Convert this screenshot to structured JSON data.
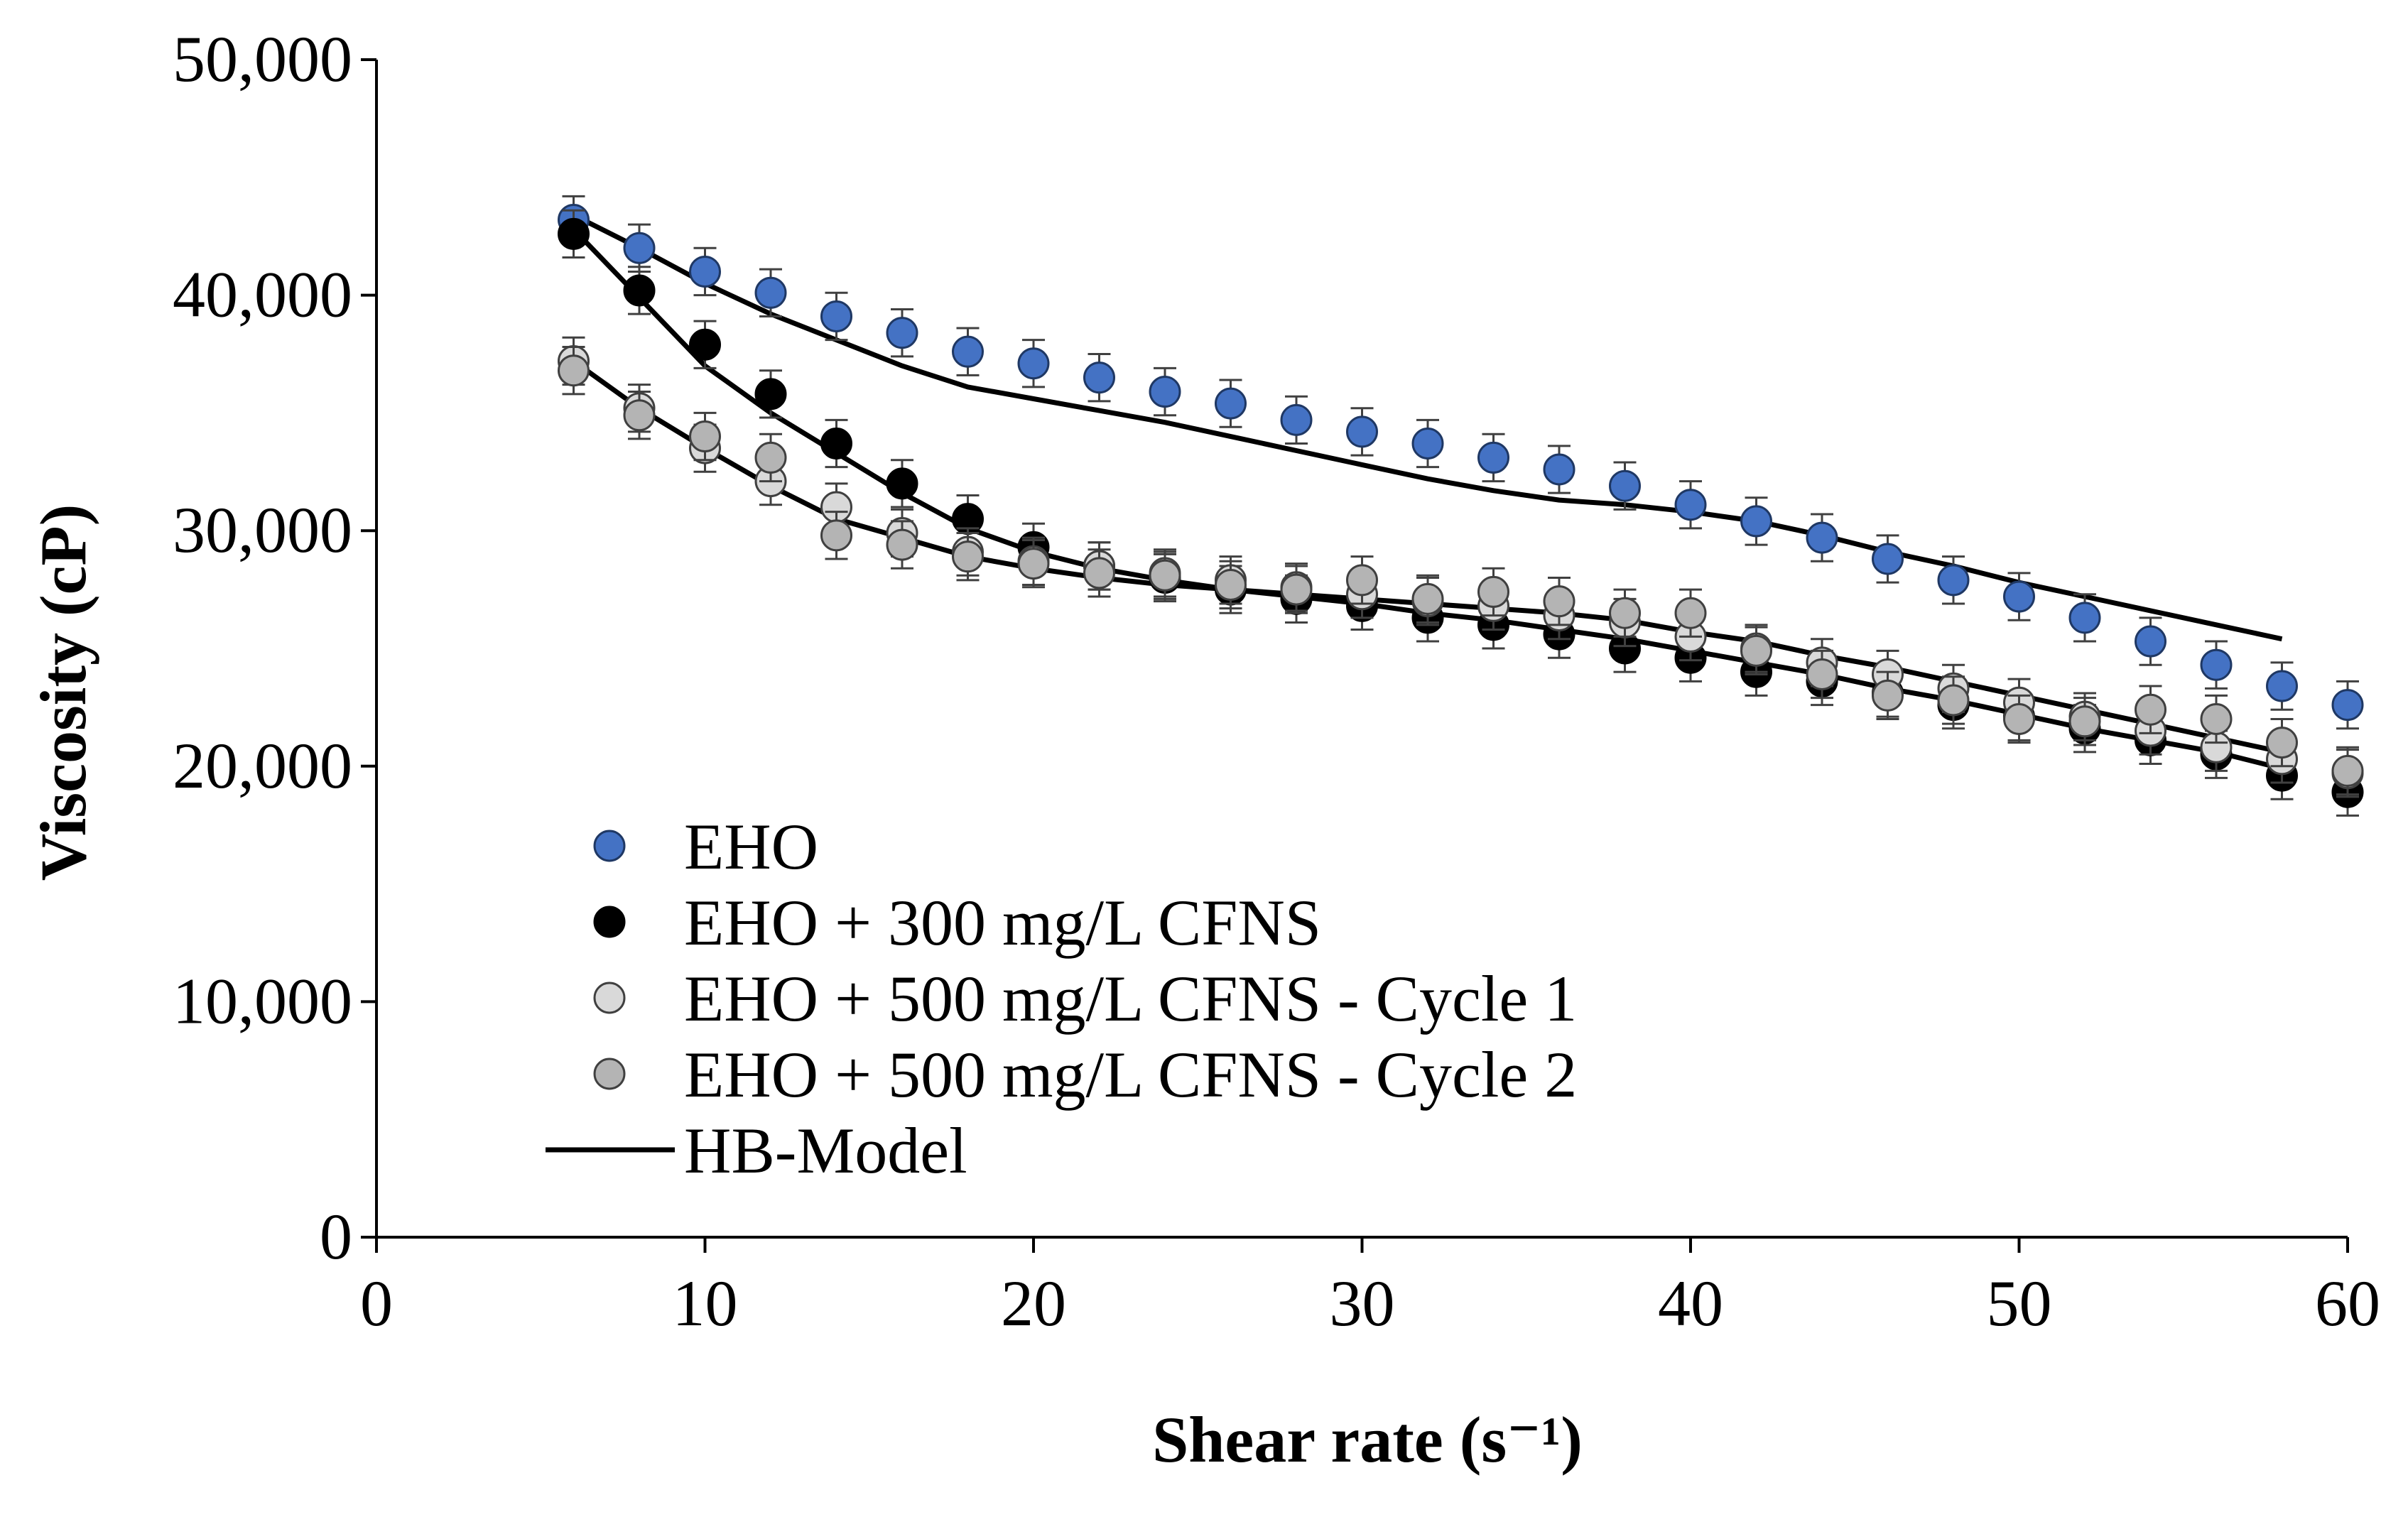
{
  "chart_data": {
    "type": "scatter",
    "title": "",
    "xlabel": "Shear rate (s⁻¹)",
    "ylabel": "Viscosity (cP)",
    "xlim": [
      0,
      60
    ],
    "ylim": [
      0,
      50000
    ],
    "x_ticks": [
      0,
      10,
      20,
      30,
      40,
      50,
      60
    ],
    "x_tick_labels": [
      "0",
      "10",
      "20",
      "30",
      "40",
      "50",
      "60"
    ],
    "y_ticks": [
      0,
      10000,
      20000,
      30000,
      40000,
      50000
    ],
    "y_tick_labels": [
      "0",
      "10,000",
      "20,000",
      "30,000",
      "40,000",
      "50,000"
    ],
    "grid": false,
    "legend_position": "bottom-left",
    "error_bar": 1000,
    "x": [
      6,
      8,
      10,
      12,
      14,
      16,
      18,
      20,
      22,
      24,
      26,
      28,
      30,
      32,
      34,
      36,
      38,
      40,
      42,
      44,
      46,
      48,
      50,
      52,
      54,
      56,
      58,
      60
    ],
    "series": [
      {
        "name": "EHO",
        "marker": "circle",
        "fill": "#4472C4",
        "stroke": "#1f3864",
        "values": [
          43200,
          42000,
          41000,
          40100,
          39100,
          38400,
          37600,
          37100,
          36500,
          35900,
          35400,
          34700,
          34200,
          33700,
          33100,
          32600,
          31900,
          31100,
          30400,
          29700,
          28800,
          27900,
          27200,
          26300,
          25300,
          24300,
          23400,
          22600
        ]
      },
      {
        "name": "EHO + 300 mg/L CFNS",
        "marker": "circle",
        "fill": "#000000",
        "stroke": "#000000",
        "values": [
          42600,
          40200,
          37900,
          35800,
          33700,
          32000,
          30500,
          29300,
          28500,
          28000,
          27500,
          27100,
          26800,
          26300,
          26000,
          25600,
          25000,
          24600,
          24000,
          23600,
          23100,
          22600,
          22100,
          21600,
          21100,
          20500,
          19600,
          18900
        ]
      },
      {
        "name": "EHO + 500 mg/L CFNS - Cycle 1",
        "marker": "circle",
        "fill": "#d9d9d9",
        "stroke": "#404040",
        "values": [
          37200,
          35200,
          33500,
          32100,
          31000,
          29900,
          29100,
          28700,
          28500,
          28200,
          27900,
          27600,
          27300,
          27000,
          26800,
          26400,
          26100,
          25500,
          25000,
          24400,
          23900,
          23300,
          22700,
          22100,
          21500,
          20800,
          20300,
          19700
        ]
      },
      {
        "name": "EHO + 500 mg/L CFNS - Cycle 2",
        "marker": "circle",
        "fill": "#b4b4b4",
        "stroke": "#404040",
        "values": [
          36800,
          34900,
          34000,
          33100,
          29800,
          29400,
          28900,
          28600,
          28200,
          28100,
          27700,
          27500,
          27900,
          27100,
          27400,
          27000,
          26500,
          26500,
          24900,
          23900,
          23000,
          22800,
          22000,
          21900,
          22400,
          22000,
          21000,
          19800
        ]
      },
      {
        "name": "HB-Model",
        "marker": "line",
        "stroke": "#000000",
        "curves": [
          {
            "x": [
              6,
              8,
              10,
              12,
              14,
              16,
              18,
              20,
              22,
              24,
              26,
              28,
              30,
              32,
              34,
              36,
              38,
              40,
              42,
              44,
              46,
              48,
              50,
              52,
              54,
              56,
              58
            ],
            "y": [
              43400,
              42000,
              40500,
              39200,
              38100,
              37000,
              36100,
              35600,
              35100,
              34600,
              34000,
              33400,
              32800,
              32200,
              31700,
              31300,
              31100,
              30800,
              30400,
              29800,
              29100,
              28500,
              27800,
              27200,
              26600,
              26000,
              25400
            ]
          },
          {
            "x": [
              6,
              8,
              10,
              12,
              14,
              16,
              18,
              20,
              22,
              24,
              26,
              28,
              30,
              32,
              34,
              36,
              38,
              40,
              42,
              44,
              46,
              48,
              50,
              52,
              54,
              56,
              58
            ],
            "y": [
              42800,
              39900,
              37000,
              35000,
              33300,
              31600,
              30100,
              29100,
              28400,
              27900,
              27500,
              27200,
              26900,
              26500,
              26200,
              25800,
              25400,
              24900,
              24400,
              23900,
              23300,
              22800,
              22200,
              21600,
              21100,
              20600,
              19900
            ]
          },
          {
            "x": [
              6,
              8,
              10,
              12,
              14,
              16,
              18,
              20,
              22,
              24,
              26,
              28,
              30,
              32,
              34,
              36,
              38,
              40,
              42,
              44,
              46,
              48,
              50,
              52,
              54,
              56,
              58
            ],
            "y": [
              37200,
              35200,
              33500,
              31900,
              30500,
              29700,
              28900,
              28400,
              28000,
              27700,
              27500,
              27300,
              27100,
              26900,
              26700,
              26500,
              26200,
              25700,
              25300,
              24700,
              24200,
              23600,
              23000,
              22400,
              21800,
              21200,
              20600
            ]
          }
        ]
      }
    ]
  }
}
